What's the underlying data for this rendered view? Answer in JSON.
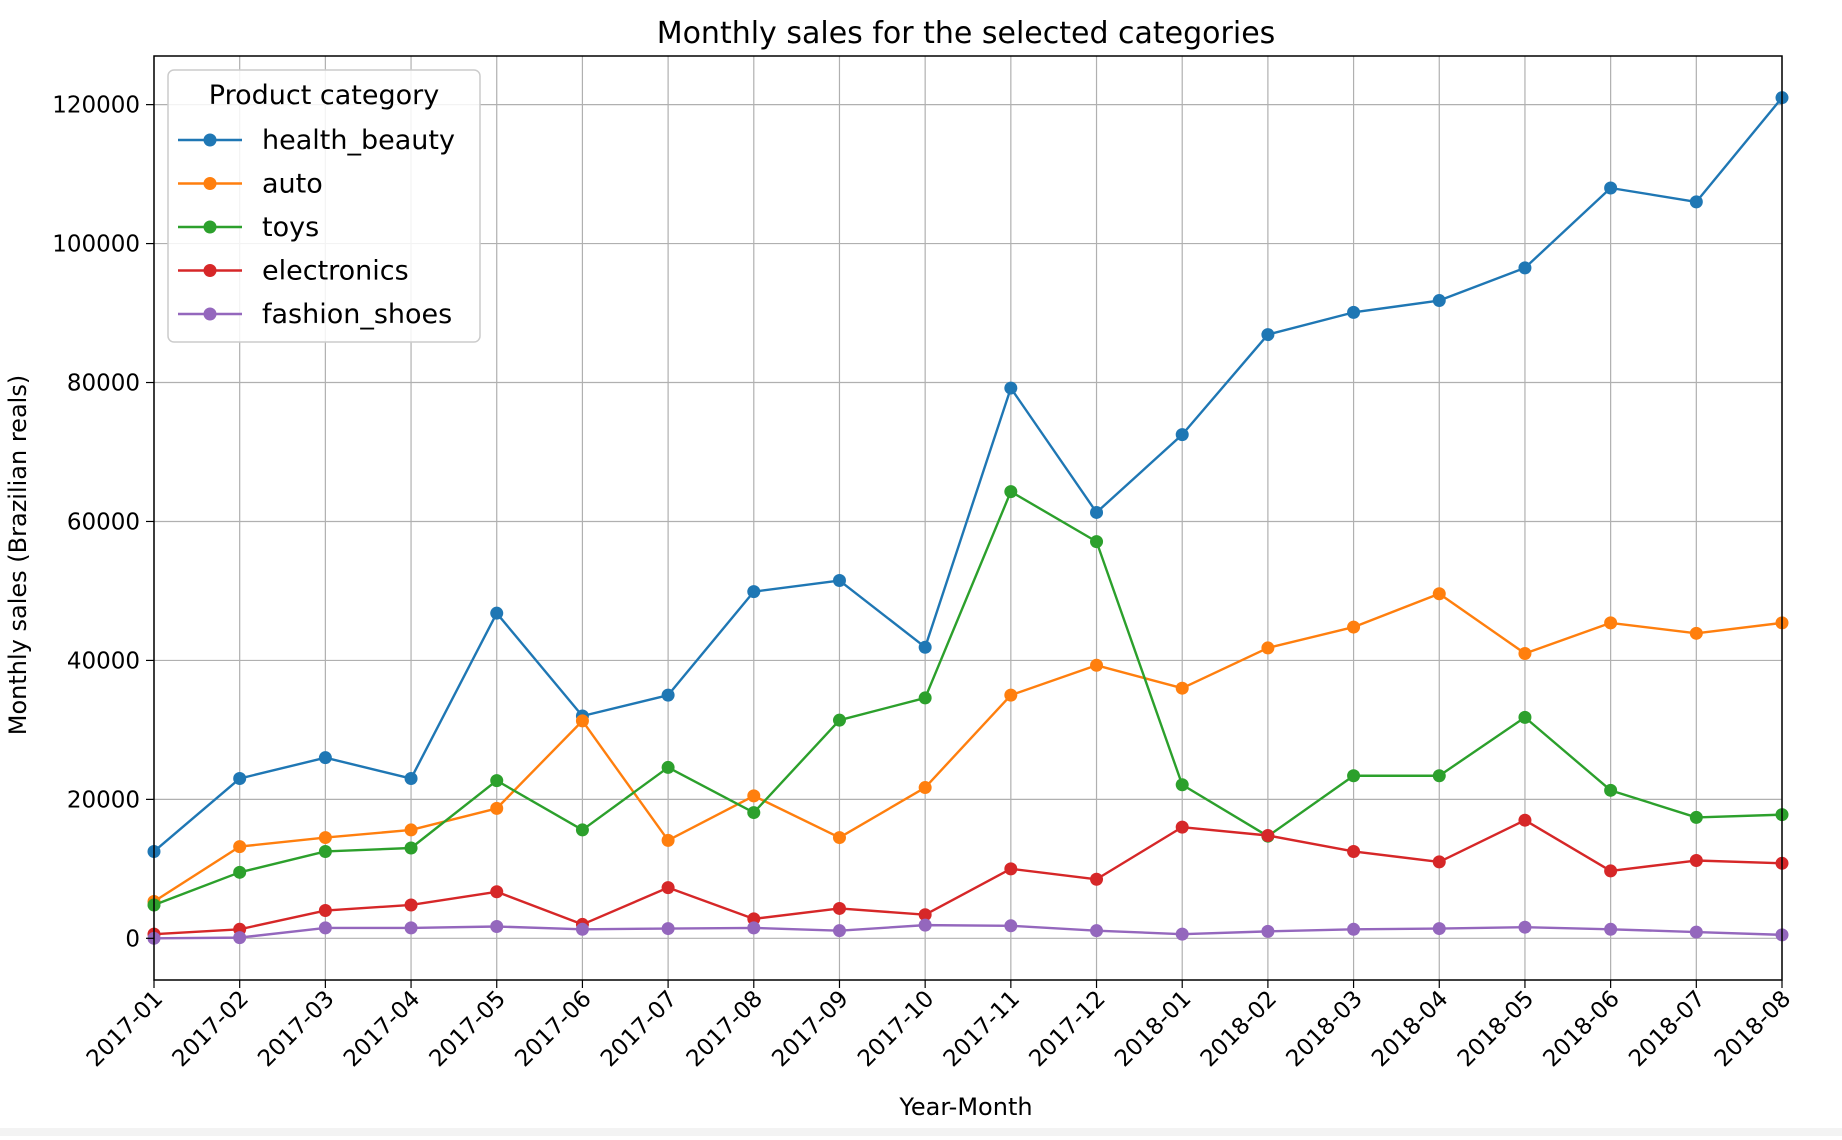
{
  "chart_data": {
    "type": "line",
    "title": "Monthly sales for the selected categories",
    "xlabel": "Year-Month",
    "ylabel": "Monthly sales (Brazilian reals)",
    "categories": [
      "2017-01",
      "2017-02",
      "2017-03",
      "2017-04",
      "2017-05",
      "2017-06",
      "2017-07",
      "2017-08",
      "2017-09",
      "2017-10",
      "2017-11",
      "2017-12",
      "2018-01",
      "2018-02",
      "2018-03",
      "2018-04",
      "2018-05",
      "2018-06",
      "2018-07",
      "2018-08"
    ],
    "ylim": [
      -6000,
      127000
    ],
    "yticks": [
      0,
      20000,
      40000,
      60000,
      80000,
      100000,
      120000
    ],
    "ytick_labels": [
      "0",
      "20000",
      "40000",
      "60000",
      "80000",
      "100000",
      "120000"
    ],
    "grid": true,
    "legend_title": "Product category",
    "legend_position": "top-left",
    "series": [
      {
        "name": "health_beauty",
        "color": "#1f77b4",
        "values": [
          12500,
          23000,
          26000,
          23000,
          46800,
          32000,
          35000,
          49900,
          51500,
          41900,
          79200,
          61300,
          72500,
          86900,
          90100,
          91800,
          96500,
          108000,
          106000,
          121000
        ]
      },
      {
        "name": "auto",
        "color": "#ff7f0e",
        "values": [
          5300,
          13200,
          14500,
          15600,
          18700,
          31300,
          14100,
          20500,
          14500,
          21700,
          35000,
          39300,
          36000,
          41800,
          44800,
          49600,
          41000,
          45400,
          43900,
          45400
        ]
      },
      {
        "name": "toys",
        "color": "#2ca02c",
        "values": [
          4800,
          9500,
          12500,
          13000,
          22700,
          15600,
          24600,
          18100,
          31400,
          34600,
          64300,
          57100,
          22100,
          14700,
          23400,
          23400,
          31800,
          21300,
          17400,
          17800
        ]
      },
      {
        "name": "electronics",
        "color": "#d62728",
        "values": [
          600,
          1300,
          4000,
          4800,
          6700,
          2000,
          7300,
          2800,
          4300,
          3400,
          10000,
          8500,
          16000,
          14800,
          12500,
          11000,
          17000,
          9700,
          11200,
          10800
        ]
      },
      {
        "name": "fashion_shoes",
        "color": "#9467bd",
        "values": [
          0,
          100,
          1500,
          1500,
          1700,
          1300,
          1400,
          1500,
          1100,
          1900,
          1800,
          1100,
          600,
          1000,
          1300,
          1400,
          1600,
          1300,
          900,
          500
        ]
      }
    ]
  }
}
